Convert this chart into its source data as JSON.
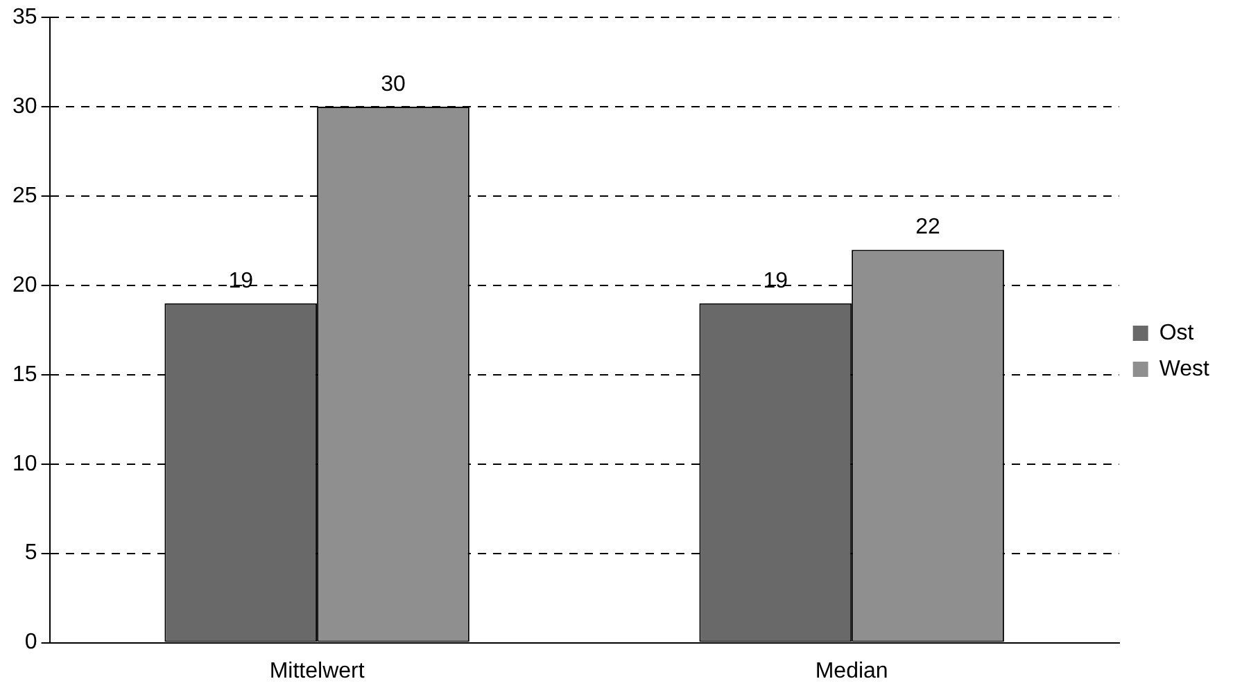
{
  "chart_data": {
    "type": "bar",
    "categories": [
      "Mittelwert",
      "Median"
    ],
    "series": [
      {
        "name": "Ost",
        "color": "#696969",
        "values": [
          19,
          19
        ]
      },
      {
        "name": "West",
        "color": "#8f8f8f",
        "values": [
          30,
          22
        ]
      }
    ],
    "ylim": [
      0,
      35
    ],
    "yticks": [
      0,
      5,
      10,
      15,
      20,
      25,
      30,
      35
    ],
    "grid": "y",
    "legend": "right",
    "data_labels": true
  }
}
